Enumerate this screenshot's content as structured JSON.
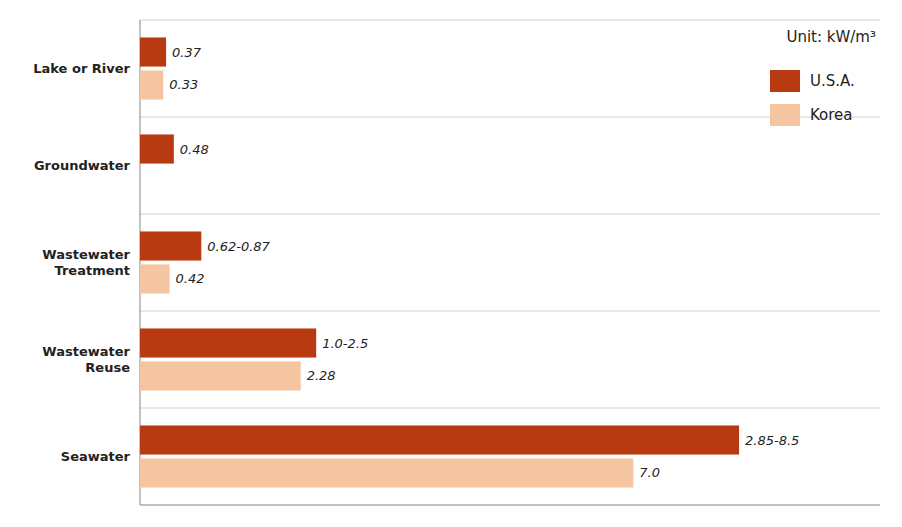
{
  "chart_data": {
    "type": "bar",
    "orientation": "horizontal",
    "categories": [
      "Seawater",
      "Wastewater\nReuse",
      "Wastewater\nTreatment",
      "Groundwater",
      "Lake or River"
    ],
    "series": [
      {
        "name": "U.S.A.",
        "color": "#B83A10",
        "values": [
          8.5,
          2.5,
          0.87,
          0.48,
          0.37
        ],
        "value_labels": [
          "2.85-8.5",
          "1.0-2.5",
          "0.62-0.87",
          "0.48",
          "0.37"
        ]
      },
      {
        "name": "Korea",
        "color": "#F5C4A0",
        "values": [
          7.0,
          2.28,
          0.42,
          null,
          0.33
        ],
        "value_labels": [
          "7.0",
          "2.28",
          "0.42",
          null,
          "0.33"
        ]
      }
    ],
    "xlim": [
      0,
      10.5
    ],
    "annotations": [
      "Unit: kW/m³"
    ],
    "data_labels": true,
    "tick_labels": "y",
    "legend": "upper right"
  }
}
